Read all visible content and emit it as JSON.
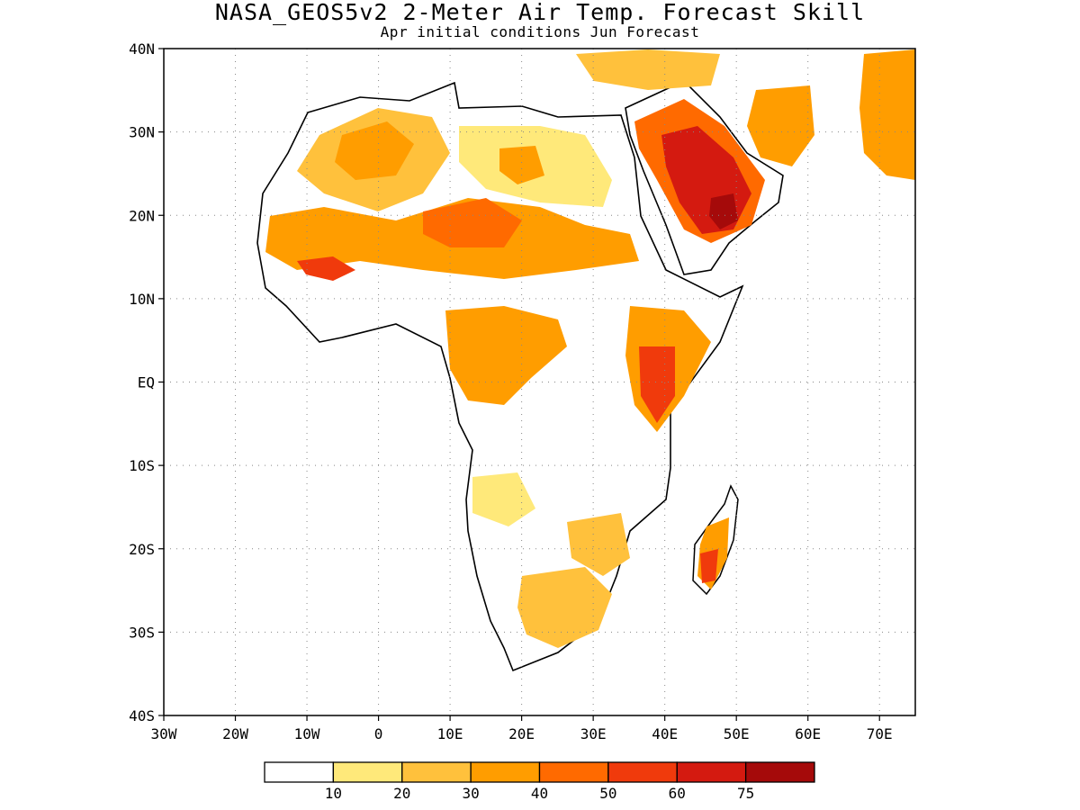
{
  "title": "NASA_GEOS5v2 2-Meter Air Temp. Forecast Skill",
  "subtitle": "Apr initial conditions  Jun Forecast",
  "map": {
    "lon_range": [
      -30,
      75
    ],
    "lat_range": [
      -40,
      40
    ],
    "lat_ticks": [
      {
        "value": 40,
        "label": "40N"
      },
      {
        "value": 30,
        "label": "30N"
      },
      {
        "value": 20,
        "label": "20N"
      },
      {
        "value": 10,
        "label": "10N"
      },
      {
        "value": 0,
        "label": "EQ"
      },
      {
        "value": -10,
        "label": "10S"
      },
      {
        "value": -20,
        "label": "20S"
      },
      {
        "value": -30,
        "label": "30S"
      },
      {
        "value": -40,
        "label": "40S"
      }
    ],
    "lon_ticks": [
      {
        "value": -30,
        "label": "30W"
      },
      {
        "value": -20,
        "label": "20W"
      },
      {
        "value": -10,
        "label": "10W"
      },
      {
        "value": 0,
        "label": "0"
      },
      {
        "value": 10,
        "label": "10E"
      },
      {
        "value": 20,
        "label": "20E"
      },
      {
        "value": 30,
        "label": "30E"
      },
      {
        "value": 40,
        "label": "40E"
      },
      {
        "value": 50,
        "label": "50E"
      },
      {
        "value": 60,
        "label": "60E"
      },
      {
        "value": 70,
        "label": "70E"
      }
    ],
    "grid": true,
    "skill_levels": [
      "10-20",
      "20-30",
      "30-40",
      "40-50",
      "50-60",
      "60-75",
      "75+"
    ]
  },
  "colorbar": {
    "colors": [
      "#ffffff",
      "#ffe97a",
      "#ffc13c",
      "#ff9d00",
      "#ff6a00",
      "#f03a0c",
      "#d41a10",
      "#a50a0a"
    ],
    "labels": [
      "10",
      "20",
      "30",
      "40",
      "50",
      "60",
      "75"
    ]
  }
}
